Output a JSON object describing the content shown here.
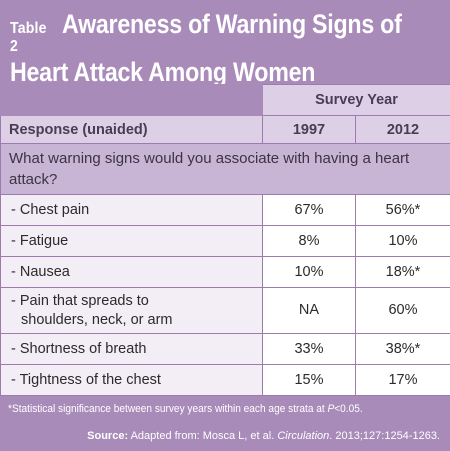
{
  "table_label": "Table 2",
  "title_line1": "Awareness of Warning Signs of",
  "title_line2": "Heart Attack Among Women",
  "header": {
    "group": "Survey Year",
    "response": "Response (unaided)",
    "years": [
      "1997",
      "2012"
    ]
  },
  "question": "What warning signs would you associate with having a heart attack?",
  "rows": [
    {
      "label": "- Chest pain",
      "v1997": "67%",
      "v2012": "56%*"
    },
    {
      "label": "- Fatigue",
      "v1997": "8%",
      "v2012": "10%"
    },
    {
      "label": "- Nausea",
      "v1997": "10%",
      "v2012": "18%*"
    },
    {
      "label_line1": "- Pain that spreads to",
      "label_line2": "shoulders, neck, or arm",
      "v1997": "NA",
      "v2012": "60%"
    },
    {
      "label": "- Shortness of breath",
      "v1997": "33%",
      "v2012": "38%*"
    },
    {
      "label": "- Tightness of the chest",
      "v1997": "15%",
      "v2012": "17%"
    }
  ],
  "footnote": {
    "prefix": "*Statistical significance between survey years within each age strata at ",
    "p": "P",
    "suffix": "<0.05."
  },
  "source": {
    "label": "Source:",
    "text": " Adapted from: Mosca L, et al. ",
    "journal": "Circulation",
    "citation": ". 2013;127:1254-1263."
  }
}
